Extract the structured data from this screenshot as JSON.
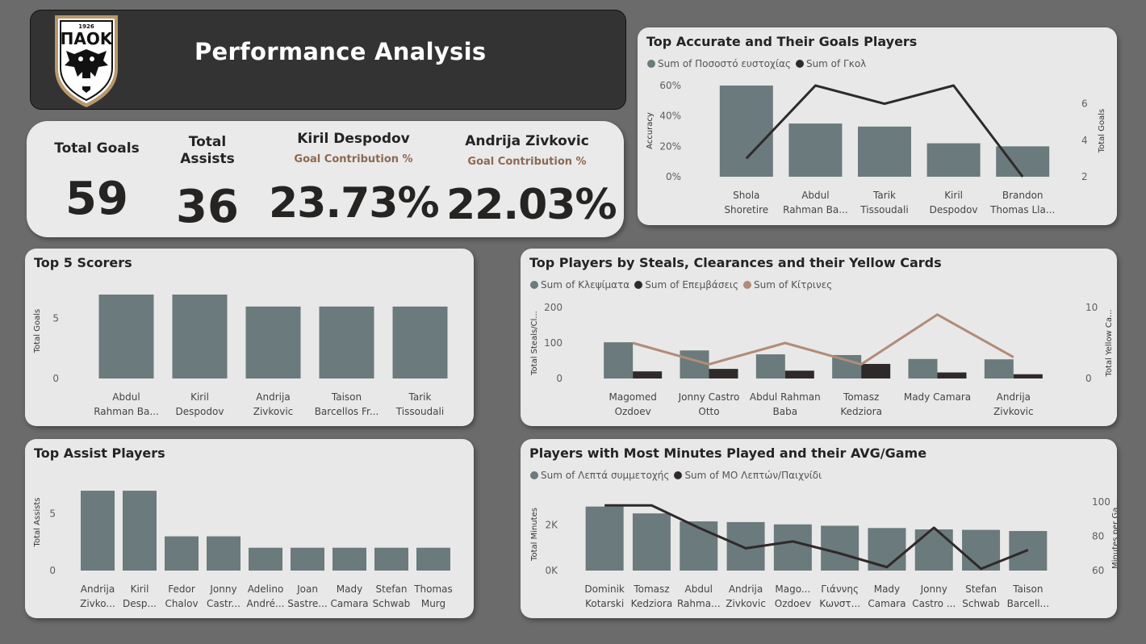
{
  "header": {
    "title": "Performance Analysis",
    "logo": {
      "year": "1926",
      "name": "ΠΑΟΚ"
    }
  },
  "kpis": {
    "total_goals": {
      "label": "Total Goals",
      "value": "59"
    },
    "total_assists": {
      "label_line1": "Total",
      "label_line2": "Assists",
      "value": "36"
    },
    "player1": {
      "name": "Kiril Despodov",
      "sub": "Goal Contribution %",
      "value": "23.73%"
    },
    "player2": {
      "name": "Andrija Zivkovic",
      "sub": "Goal Contribution %",
      "value": "22.03%"
    }
  },
  "colors": {
    "bar": "#6b7a7c",
    "line": "#2f2a2a",
    "accent": "#b08c78"
  },
  "chart_data": [
    {
      "id": "accurate",
      "type": "bar",
      "title": "Top Accurate and Their Goals Players",
      "categories": [
        [
          "Shola",
          "Shoretire"
        ],
        [
          "Abdul",
          "Rahman Ba..."
        ],
        [
          "Tarik",
          "Tissoudali"
        ],
        [
          "Kiril",
          "Despodov"
        ],
        [
          "Brandon",
          "Thomas Lla..."
        ]
      ],
      "series": [
        {
          "name": "Sum of Ποσοστό ευστοχίας",
          "type": "bar",
          "axis": "left",
          "values": [
            60,
            35,
            33,
            22,
            20
          ]
        },
        {
          "name": "Sum of Γκολ",
          "type": "line",
          "axis": "right",
          "values": [
            3,
            7,
            6,
            7,
            2
          ]
        }
      ],
      "ylabel_left": "Accuracy",
      "ylabel_right": "Total Goals",
      "yticks_left": [
        "0%",
        "20%",
        "40%",
        "60%"
      ],
      "ylim_left": [
        0,
        60
      ],
      "yticks_right": [
        "2",
        "4",
        "6"
      ],
      "ylim_right": [
        2,
        7
      ],
      "legend": "top-left"
    },
    {
      "id": "scorers",
      "type": "bar",
      "title": "Top 5 Scorers",
      "categories": [
        [
          "Abdul",
          "Rahman Ba..."
        ],
        [
          "Kiril",
          "Despodov"
        ],
        [
          "Andrija",
          "Zivkovic"
        ],
        [
          "Taison",
          "Barcellos Fr..."
        ],
        [
          "Tarik",
          "Tissoudali"
        ]
      ],
      "series": [
        {
          "type": "bar",
          "axis": "left",
          "values": [
            7,
            7,
            6,
            6,
            6
          ]
        }
      ],
      "ylabel_left": "Total Goals",
      "yticks_left": [
        "0",
        "5"
      ],
      "ylim_left": [
        0,
        7
      ]
    },
    {
      "id": "steals",
      "type": "bar",
      "title": "Top Players by Steals, Clearances and their Yellow Cards",
      "categories": [
        [
          "Magomed",
          "Ozdoev"
        ],
        [
          "Jonny Castro",
          "Otto"
        ],
        [
          "Abdul Rahman",
          "Baba"
        ],
        [
          "Tomasz",
          "Kedziora"
        ],
        [
          "Mady Camara"
        ],
        [
          "Andrija",
          "Zivkovic"
        ]
      ],
      "series": [
        {
          "name": "Sum of Κλεψίματα",
          "type": "bar",
          "axis": "left",
          "values": [
            102,
            79,
            68,
            66,
            55,
            54
          ]
        },
        {
          "name": "Sum of Επεμβάσεις",
          "type": "bar",
          "axis": "left",
          "values": [
            20,
            27,
            22,
            41,
            17,
            12
          ]
        },
        {
          "name": "Sum of Κίτρινες",
          "type": "line",
          "axis": "right",
          "values": [
            5,
            2,
            5,
            2,
            9,
            3
          ]
        }
      ],
      "ylabel_left": "Total Steals/Cl...",
      "ylabel_right": "Total Yellow Ca...",
      "yticks_left": [
        "0",
        "100",
        "200"
      ],
      "ylim_left": [
        0,
        200
      ],
      "yticks_right": [
        "0",
        "10"
      ],
      "ylim_right": [
        0,
        10
      ],
      "legend": "top-left"
    },
    {
      "id": "assists",
      "type": "bar",
      "title": "Top Assist Players",
      "categories": [
        [
          "Andrija",
          "Zivko..."
        ],
        [
          "Kiril",
          "Desp..."
        ],
        [
          "Fedor",
          "Chalov"
        ],
        [
          "Jonny",
          "Castr..."
        ],
        [
          "Adelino",
          "André..."
        ],
        [
          "Joan",
          "Sastre..."
        ],
        [
          "Mady",
          "Camara"
        ],
        [
          "Stefan",
          "Schwab"
        ],
        [
          "Thomas",
          "Murg"
        ]
      ],
      "series": [
        {
          "type": "bar",
          "axis": "left",
          "values": [
            7,
            7,
            3,
            3,
            2,
            2,
            2,
            2,
            2
          ]
        }
      ],
      "ylabel_left": "Total Assists",
      "yticks_left": [
        "0",
        "5"
      ],
      "ylim_left": [
        0,
        7.5
      ]
    },
    {
      "id": "minutes",
      "type": "bar",
      "title": "Players with Most Minutes Played and their AVG/Game",
      "categories": [
        [
          "Dominik",
          "Kotarski"
        ],
        [
          "Tomasz",
          "Kedziora"
        ],
        [
          "Abdul",
          "Rahma..."
        ],
        [
          "Andrija",
          "Zivkovic"
        ],
        [
          "Mago...",
          "Ozdoev"
        ],
        [
          "Γιάννης",
          "Κωνστ..."
        ],
        [
          "Mady",
          "Camara"
        ],
        [
          "Jonny",
          "Castro ..."
        ],
        [
          "Stefan",
          "Schwab"
        ],
        [
          "Taison",
          "Barcell..."
        ]
      ],
      "series": [
        {
          "name": "Sum of Λεπτά συμμετοχής",
          "type": "bar",
          "axis": "left",
          "values": [
            2800,
            2500,
            2150,
            2120,
            2020,
            1960,
            1860,
            1800,
            1780,
            1730
          ]
        },
        {
          "name": "Sum of ΜΟ Λεπτών/Παιχνίδι",
          "type": "line",
          "axis": "right",
          "values": [
            98,
            98,
            85,
            73,
            77,
            70,
            62,
            85,
            61,
            72
          ]
        }
      ],
      "ylabel_left": "Total Minutes",
      "ylabel_right": "Minutes per Ga...",
      "yticks_left": [
        "0K",
        "2K"
      ],
      "ylim_left": [
        0,
        3000
      ],
      "yticks_right": [
        "60",
        "80",
        "100"
      ],
      "ylim_right": [
        60,
        100
      ],
      "legend": "top-left"
    }
  ]
}
